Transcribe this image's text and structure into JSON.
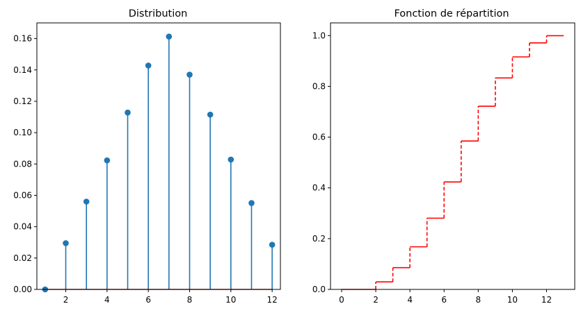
{
  "chart_data": [
    {
      "type": "stem",
      "title": "Distribution",
      "xlabel": "",
      "ylabel": "",
      "x": [
        1,
        2,
        3,
        4,
        5,
        6,
        7,
        8,
        9,
        10,
        11,
        12
      ],
      "values": [
        0.0,
        0.0295,
        0.056,
        0.0823,
        0.1128,
        0.1428,
        0.1613,
        0.137,
        0.1115,
        0.0828,
        0.0551,
        0.0285
      ],
      "xlim": [
        0.6,
        12.4
      ],
      "ylim": [
        0,
        0.17
      ],
      "xticks": [
        "2",
        "4",
        "6",
        "8",
        "10",
        "12"
      ],
      "yticks": [
        "0.00",
        "0.02",
        "0.04",
        "0.06",
        "0.08",
        "0.10",
        "0.12",
        "0.14",
        "0.16"
      ],
      "grid": false,
      "color": "#1f77b4"
    },
    {
      "type": "step",
      "title": "Fonction de répartition",
      "xlabel": "",
      "ylabel": "",
      "x": [
        0,
        1,
        2,
        3,
        4,
        5,
        6,
        7,
        8,
        9,
        10,
        11,
        12,
        13
      ],
      "values": [
        0.0,
        0.0,
        0.0295,
        0.0855,
        0.1678,
        0.2806,
        0.4234,
        0.5847,
        0.7217,
        0.8332,
        0.916,
        0.9711,
        0.9996,
        1.0
      ],
      "xlim": [
        -0.65,
        13.65
      ],
      "ylim": [
        0,
        1.05
      ],
      "xticks": [
        "0",
        "2",
        "4",
        "6",
        "8",
        "10",
        "12"
      ],
      "yticks": [
        "0.0",
        "0.2",
        "0.4",
        "0.6",
        "0.8",
        "1.0"
      ],
      "grid": false,
      "linestyle": "dashed-vertical",
      "color": "#ff0000"
    }
  ]
}
